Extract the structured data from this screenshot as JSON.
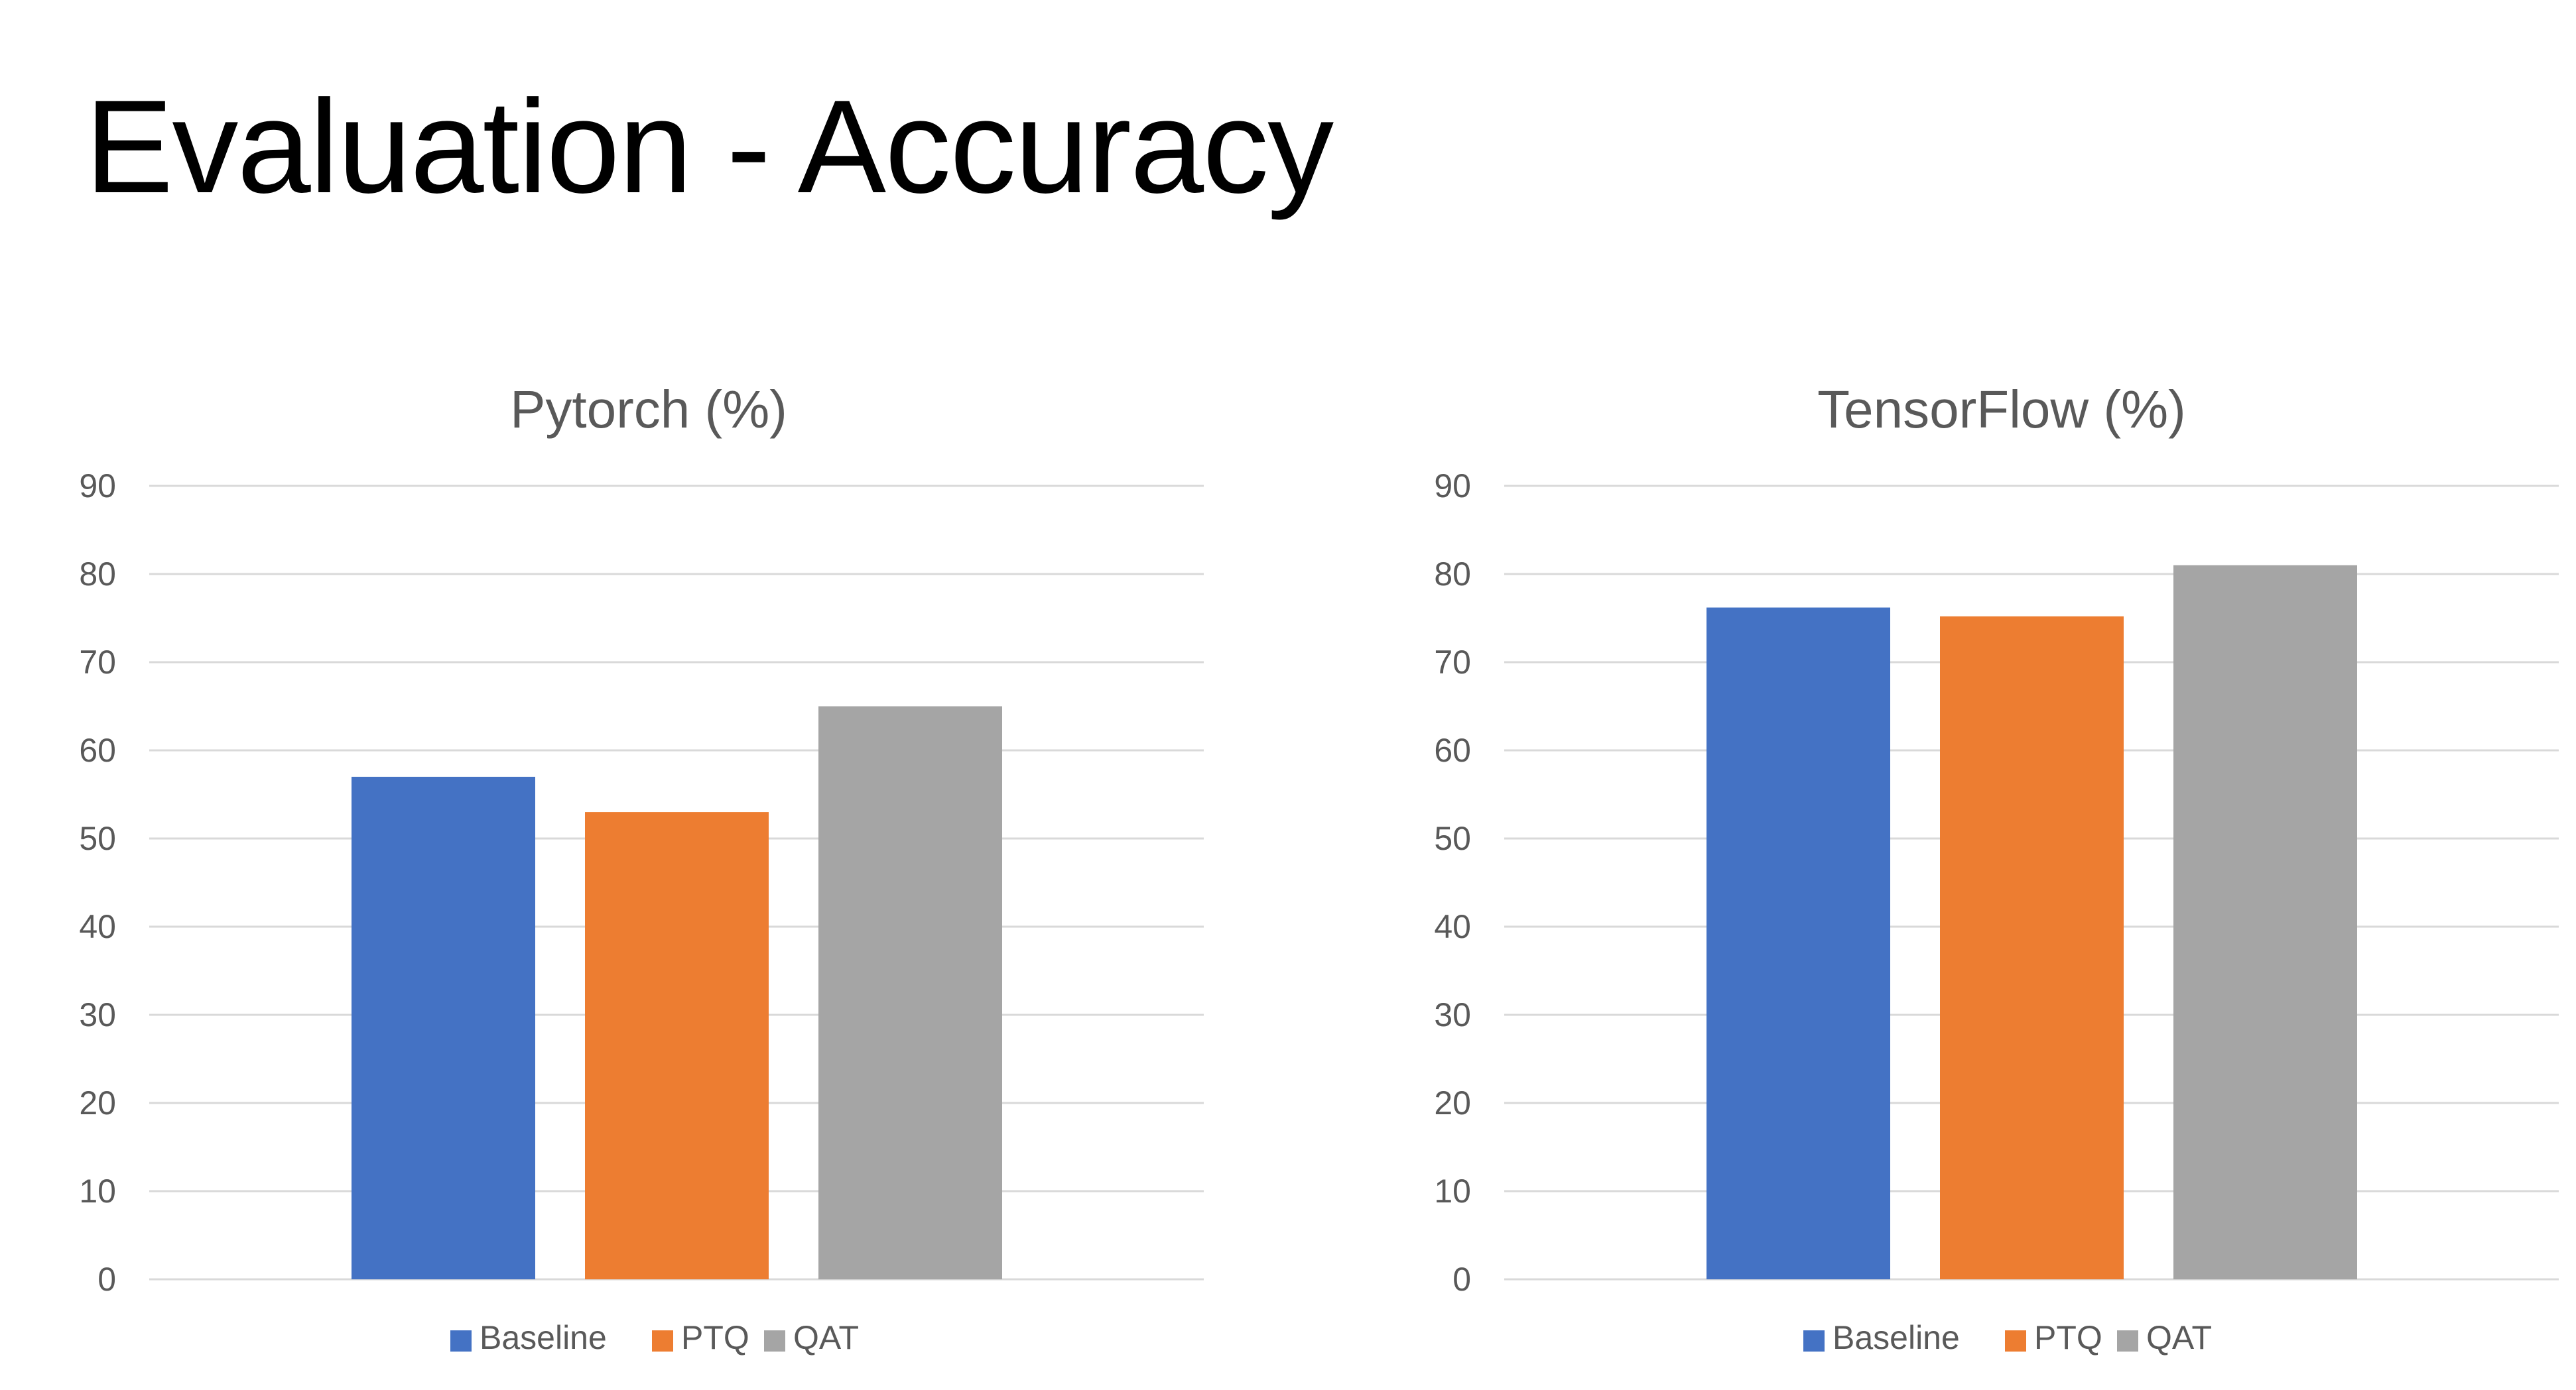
{
  "slide": {
    "title": "Evaluation - Accuracy"
  },
  "chart_data": [
    {
      "type": "bar",
      "title": "Pytorch (%)",
      "xlabel": "",
      "ylabel": "",
      "ylim": [
        0,
        90
      ],
      "yticks": [
        0,
        10,
        20,
        30,
        40,
        50,
        60,
        70,
        80,
        90
      ],
      "grid": true,
      "legend_position": "bottom",
      "series": [
        {
          "name": "Baseline",
          "color": "#4472c4",
          "values": [
            57
          ]
        },
        {
          "name": "PTQ",
          "color": "#ed7d31",
          "values": [
            53
          ]
        },
        {
          "name": "QAT",
          "color": "#a5a5a5",
          "values": [
            65
          ]
        }
      ]
    },
    {
      "type": "bar",
      "title": "TensorFlow (%)",
      "xlabel": "",
      "ylabel": "",
      "ylim": [
        0,
        90
      ],
      "yticks": [
        0,
        10,
        20,
        30,
        40,
        50,
        60,
        70,
        80,
        90
      ],
      "grid": true,
      "legend_position": "bottom",
      "series": [
        {
          "name": "Baseline",
          "color": "#4472c4",
          "values": [
            76.2
          ]
        },
        {
          "name": "PTQ",
          "color": "#ed7d31",
          "values": [
            75.2
          ]
        },
        {
          "name": "QAT",
          "color": "#a5a5a5",
          "values": [
            81
          ]
        }
      ]
    }
  ]
}
